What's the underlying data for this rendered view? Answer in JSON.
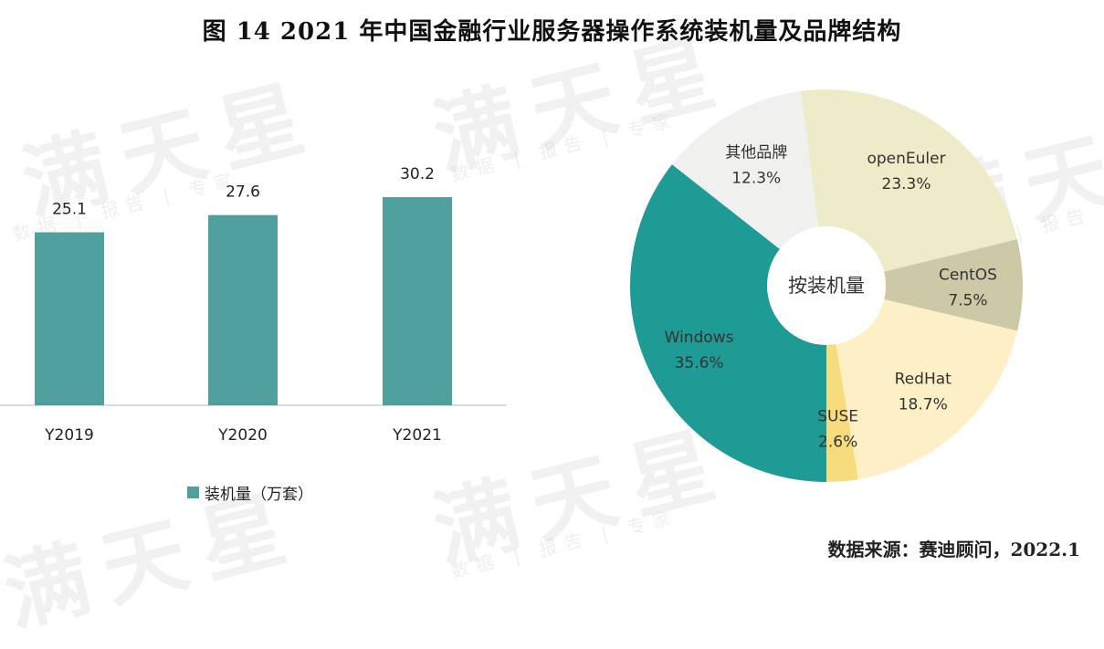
{
  "title": "图  14    2021 年中国金融行业服务器操作系统装机量及品牌结构",
  "watermark": {
    "main": "满天星",
    "sub": "数据 | 报告 | 专家"
  },
  "source": "数据来源：赛迪顾问，2022.1",
  "colors": {
    "bar": "#4f9f9c",
    "Windows": "#1f9b96",
    "其他品牌": "#f0f0ef",
    "openEuler": "#eeebc9",
    "CentOS": "#cdc9a6",
    "RedHat": "#fdf0c6",
    "SUSE": "#f7dc7e"
  },
  "chart_data": [
    {
      "type": "bar",
      "title": "",
      "categories": [
        "Y2019",
        "Y2020",
        "Y2021"
      ],
      "values": [
        25.1,
        27.6,
        30.2
      ],
      "value_labels": [
        "25.1",
        "27.6",
        "30.2"
      ],
      "legend": "装机量（万套）",
      "xlabel": "",
      "ylabel": "",
      "ylim": [
        0,
        35
      ],
      "grid": false
    },
    {
      "type": "pie",
      "center_label": "按装机量",
      "slices": [
        {
          "label": "Windows",
          "value": 35.6,
          "value_label": "35.6%"
        },
        {
          "label": "其他品牌",
          "value": 12.3,
          "value_label": "12.3%"
        },
        {
          "label": "openEuler",
          "value": 23.3,
          "value_label": "23.3%"
        },
        {
          "label": "CentOS",
          "value": 7.5,
          "value_label": "7.5%"
        },
        {
          "label": "RedHat",
          "value": 18.7,
          "value_label": "18.7%"
        },
        {
          "label": "SUSE",
          "value": 2.6,
          "value_label": "2.6%"
        }
      ]
    }
  ]
}
